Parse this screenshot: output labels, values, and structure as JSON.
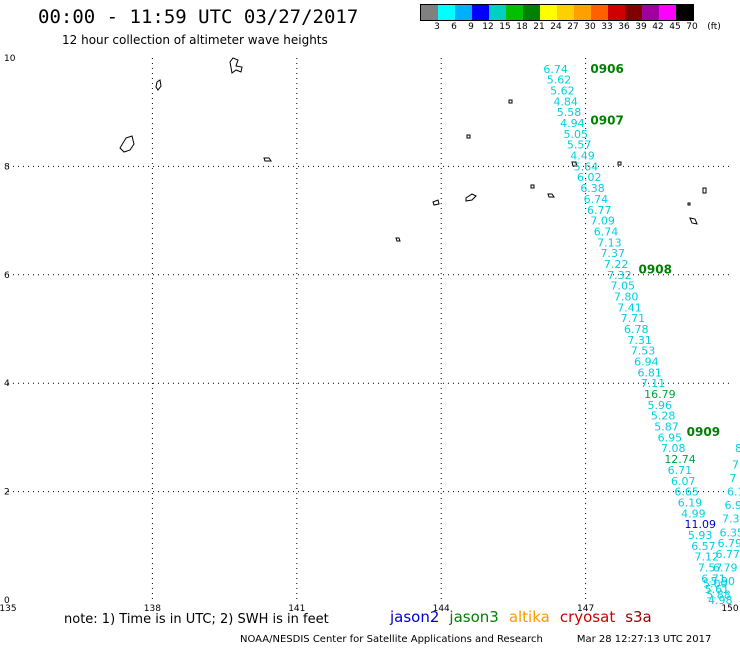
{
  "title": "00:00 - 11:59 UTC 03/27/2017",
  "subtitle": "12 hour collection of altimeter wave heights",
  "legend": {
    "colors": [
      "#808080",
      "#00ffff",
      "#00b0ff",
      "#0000ff",
      "#00d0c0",
      "#00c000",
      "#008000",
      "#ffff00",
      "#ffd000",
      "#ffa000",
      "#ff6000",
      "#d00000",
      "#800000",
      "#a000a0",
      "#ff00ff",
      "#000000"
    ],
    "labels": [
      "3",
      "6",
      "9",
      "12",
      "15",
      "18",
      "21",
      "24",
      "27",
      "30",
      "33",
      "36",
      "39",
      "42",
      "45",
      "70"
    ],
    "unit": "(ft)"
  },
  "axes": {
    "x_ticks": [
      "135",
      "138",
      "141",
      "144",
      "147",
      "150"
    ],
    "y_ticks": [
      "0",
      "2",
      "4",
      "6",
      "8",
      "10"
    ]
  },
  "colors": {
    "cyan": "#00d0e0",
    "green": "#00a040",
    "darkgreen": "#008000",
    "blue": "#0000cc"
  },
  "track_main": {
    "values": [
      "6.74",
      "5.62",
      "5.62",
      "4.84",
      "5.58",
      "4.94",
      "5.05",
      "5.57",
      "4.49",
      "5.64",
      "6.02",
      "6.38",
      "6.74",
      "6.77",
      "7.09",
      "6.74",
      "7.13",
      "7.37",
      "7.22",
      "7.32",
      "7.05",
      "7.80",
      "7.41",
      "7.71",
      "6.78",
      "7.31",
      "7.53",
      "6.94",
      "6.81",
      "7.11",
      "16.79",
      "5.96",
      "5.28",
      "5.87",
      "6.95",
      "7.08",
      "12.74",
      "6.71",
      "6.07",
      "6.65",
      "6.19",
      "4.99",
      "11.09",
      "5.93",
      "6.57",
      "7.12",
      "7.57",
      "6.71",
      "5.00",
      "5.61",
      "5.88",
      "4.98"
    ],
    "lats": [
      9.8,
      9.6,
      9.4,
      9.2,
      9.0,
      8.8,
      8.6,
      8.4,
      8.2,
      8.0,
      7.8,
      7.6,
      7.4,
      7.2,
      7.0,
      6.8,
      6.6,
      6.4,
      6.2,
      6.0,
      5.8,
      5.6,
      5.4,
      5.2,
      5.0,
      4.8,
      4.6,
      4.4,
      4.2,
      4.0,
      3.8,
      3.6,
      3.4,
      3.2,
      3.0,
      2.8,
      2.6,
      2.4,
      2.2,
      2.0,
      1.8,
      1.6,
      1.4,
      1.2,
      1.0,
      0.8,
      0.6,
      0.4,
      0.3,
      0.2,
      0.1,
      0.0
    ],
    "colors_idx": [
      "c",
      "c",
      "c",
      "c",
      "c",
      "c",
      "c",
      "c",
      "c",
      "c",
      "c",
      "c",
      "c",
      "c",
      "c",
      "c",
      "c",
      "c",
      "c",
      "c",
      "c",
      "c",
      "c",
      "c",
      "c",
      "c",
      "c",
      "c",
      "c",
      "c",
      "g",
      "c",
      "c",
      "c",
      "c",
      "c",
      "g",
      "c",
      "c",
      "c",
      "c",
      "c",
      "b",
      "c",
      "c",
      "c",
      "c",
      "c",
      "c",
      "c",
      "c",
      "c"
    ]
  },
  "track_second": {
    "values": [
      "8",
      "7",
      "7",
      "6.1",
      "6.9",
      "7.36",
      "6.35",
      "6.79",
      "6.77",
      "6.79",
      "5.90"
    ],
    "lats": [
      2.8,
      2.5,
      2.25,
      2.0,
      1.75,
      1.5,
      1.25,
      1.05,
      0.85,
      0.6,
      0.35
    ]
  },
  "time_labels": [
    {
      "text": "0906",
      "lon": 147.1,
      "lat": 9.8
    },
    {
      "text": "0907",
      "lon": 147.1,
      "lat": 8.85
    },
    {
      "text": "0908",
      "lon": 148.1,
      "lat": 6.1
    },
    {
      "text": "0909",
      "lon": 149.1,
      "lat": 3.1
    }
  ],
  "note": "note: 1) Time is in UTC; 2) SWH is in feet",
  "satellites": [
    {
      "name": "jason2",
      "color": "#0000cc"
    },
    {
      "name": "jason3",
      "color": "#008000"
    },
    {
      "name": "altika",
      "color": "#ff9900"
    },
    {
      "name": "cryosat",
      "color": "#cc0000"
    },
    {
      "name": "s3a",
      "color": "#990000"
    }
  ],
  "footer": {
    "center": "NOAA/NESDIS Center for Satellite Applications and Research",
    "timestamp": "Mar 28 12:27:13 UTC 2017"
  }
}
